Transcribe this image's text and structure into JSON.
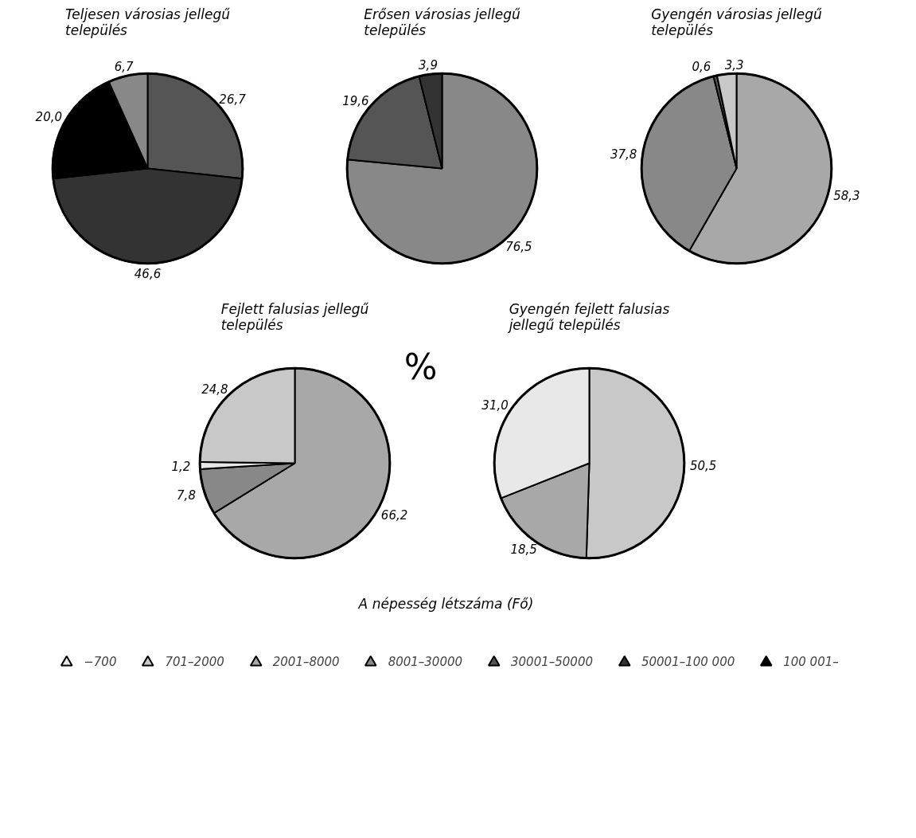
{
  "chart_data": [
    {
      "type": "pie",
      "title": "Teljesen városias jellegű település",
      "categories": [
        null,
        null,
        null,
        null
      ],
      "values": [
        26.7,
        46.6,
        20.0,
        6.7
      ],
      "value_labels": [
        "26,7",
        "46,6",
        "20,0",
        "6,7"
      ],
      "colors": [
        "#555555",
        "#333333",
        "#000000",
        "#888888"
      ]
    },
    {
      "type": "pie",
      "title": "Erősen városias jellegű település",
      "categories": [
        null,
        null,
        null
      ],
      "values": [
        76.5,
        19.6,
        3.9
      ],
      "value_labels": [
        "76,5",
        "19,6",
        "3,9"
      ],
      "colors": [
        "#888888",
        "#555555",
        "#333333"
      ]
    },
    {
      "type": "pie",
      "title": "Gyengén városias jellegű település",
      "categories": [
        null,
        null,
        null,
        null
      ],
      "values": [
        58.3,
        37.8,
        0.6,
        3.3
      ],
      "value_labels": [
        "58,3",
        "37,8",
        "0,6",
        "3,3"
      ],
      "colors": [
        "#a8a8a8",
        "#888888",
        "#555555",
        "#c8c8c8"
      ]
    },
    {
      "type": "pie",
      "title": "Fejlett falusias jellegű település",
      "categories": [
        null,
        null,
        null,
        null
      ],
      "values": [
        66.2,
        7.8,
        1.2,
        24.8
      ],
      "value_labels": [
        "66,2",
        "7,8",
        "1,2",
        "24,8"
      ],
      "colors": [
        "#a8a8a8",
        "#888888",
        "#e8e8e8",
        "#c8c8c8"
      ],
      "annotations": [
        "%"
      ]
    },
    {
      "type": "pie",
      "title": "Gyengén fejlett falusias jellegű település",
      "categories": [
        null,
        null,
        null
      ],
      "values": [
        50.5,
        18.5,
        31.0
      ],
      "value_labels": [
        "50,5",
        "18,5",
        "31,0"
      ],
      "colors": [
        "#c8c8c8",
        "#a8a8a8",
        "#e8e8e8"
      ]
    },
    {
      "type": "other",
      "title": "A népesség létszáma (Fő)",
      "categories": [
        "−700",
        "701–2000",
        "2001–8000",
        "8001–30000",
        "30001–50000",
        "50001–100 000",
        "100 001–"
      ],
      "colors": [
        "#e8e8e8",
        "#c8c8c8",
        "#a8a8a8",
        "#888888",
        "#555555",
        "#333333",
        "#000000"
      ]
    }
  ]
}
